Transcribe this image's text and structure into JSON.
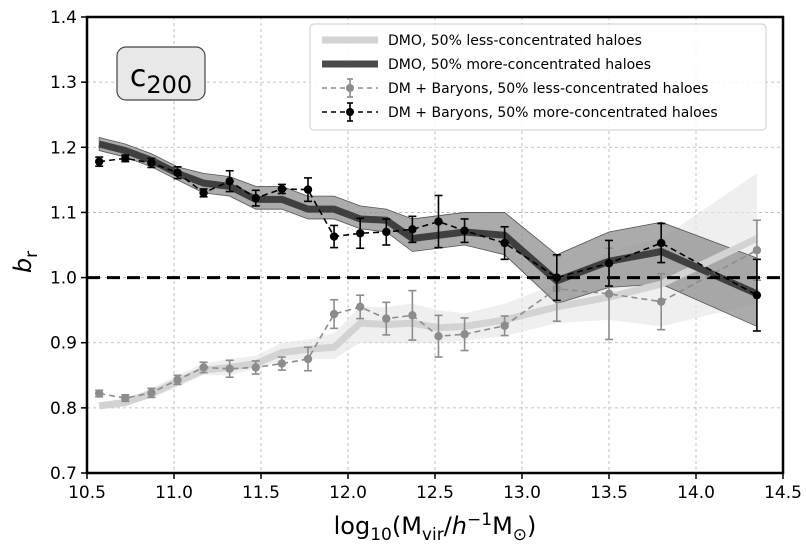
{
  "chart_data": {
    "type": "line",
    "title_box": {
      "base": "c",
      "sub": "200"
    },
    "xlabel": {
      "pre": "log",
      "pre_sub": "10",
      "open": "(M",
      "m_sub": "vir",
      "slash": "/",
      "h": "h",
      "h_sup": "−1",
      "msun": "M",
      "msun_sub": "⊙",
      "close": ")"
    },
    "ylabel": {
      "base": "b",
      "sub": "r"
    },
    "xlim": [
      10.5,
      14.5
    ],
    "ylim": [
      0.7,
      1.4
    ],
    "xticks": [
      10.5,
      11.0,
      11.5,
      12.0,
      12.5,
      13.0,
      13.5,
      14.0,
      14.5
    ],
    "yticks": [
      0.7,
      0.8,
      0.9,
      1.0,
      1.1,
      1.2,
      1.3,
      1.4
    ],
    "xtick_labels": [
      "10.5",
      "11.0",
      "11.5",
      "12.0",
      "12.5",
      "13.0",
      "13.5",
      "14.0",
      "14.5"
    ],
    "ytick_labels": [
      "0.7",
      "0.8",
      "0.9",
      "1.0",
      "1.1",
      "1.2",
      "1.3",
      "1.4"
    ],
    "grid": true,
    "reference_line": 1.0,
    "legend": {
      "position": "top-right",
      "entries": [
        {
          "label": "DMO, 50% less-concentrated haloes",
          "style": "thick",
          "color": "#d3d3d3"
        },
        {
          "label": "DMO, 50% more-concentrated haloes",
          "style": "thick",
          "color": "#4a4a4a"
        },
        {
          "label": "DM + Baryons, 50% less-concentrated haloes",
          "style": "errorbar",
          "color": "#8c8c8c"
        },
        {
          "label": "DM + Baryons, 50% more-concentrated haloes",
          "style": "errorbar",
          "color": "#000000"
        }
      ]
    },
    "series": [
      {
        "name": "DMO, 50% less-concentrated haloes",
        "kind": "band_line",
        "color": "#d3d3d3",
        "band_color": "#e6e6e6",
        "x": [
          10.57,
          10.72,
          10.87,
          11.02,
          11.17,
          11.32,
          11.47,
          11.62,
          11.77,
          11.92,
          12.07,
          12.22,
          12.37,
          12.52,
          12.67,
          12.9,
          13.2,
          13.5,
          13.8,
          14.35
        ],
        "y": [
          0.803,
          0.808,
          0.822,
          0.84,
          0.858,
          0.862,
          0.868,
          0.885,
          0.89,
          0.893,
          0.93,
          0.928,
          0.93,
          0.923,
          0.925,
          0.935,
          0.955,
          0.97,
          0.99,
          1.06
        ],
        "lo": [
          0.798,
          0.803,
          0.815,
          0.832,
          0.85,
          0.85,
          0.86,
          0.873,
          0.875,
          0.875,
          0.9,
          0.9,
          0.9,
          0.9,
          0.903,
          0.91,
          0.93,
          0.935,
          0.925,
          0.96
        ],
        "hi": [
          0.808,
          0.815,
          0.83,
          0.85,
          0.868,
          0.875,
          0.88,
          0.9,
          0.905,
          0.915,
          0.955,
          0.955,
          0.96,
          0.95,
          0.945,
          0.96,
          0.99,
          1.04,
          1.06,
          1.16
        ]
      },
      {
        "name": "DMO, 50% more-concentrated haloes",
        "kind": "band_line",
        "color": "#3f3f3f",
        "band_color": "#8f8f8f",
        "x": [
          10.57,
          10.72,
          10.87,
          11.02,
          11.17,
          11.32,
          11.47,
          11.62,
          11.77,
          11.92,
          12.07,
          12.22,
          12.37,
          12.52,
          12.67,
          12.9,
          13.2,
          13.5,
          13.8,
          14.35
        ],
        "y": [
          1.205,
          1.195,
          1.18,
          1.16,
          1.145,
          1.14,
          1.12,
          1.12,
          1.105,
          1.105,
          1.09,
          1.088,
          1.06,
          1.065,
          1.07,
          1.065,
          0.995,
          1.025,
          1.04,
          0.975
        ],
        "lo": [
          1.195,
          1.185,
          1.17,
          1.15,
          1.13,
          1.125,
          1.105,
          1.105,
          1.09,
          1.09,
          1.075,
          1.07,
          1.04,
          1.045,
          1.05,
          1.035,
          0.96,
          0.985,
          0.99,
          0.925
        ],
        "hi": [
          1.215,
          1.205,
          1.19,
          1.17,
          1.16,
          1.155,
          1.14,
          1.14,
          1.125,
          1.125,
          1.11,
          1.105,
          1.09,
          1.095,
          1.1,
          1.1,
          1.035,
          1.07,
          1.085,
          1.03
        ]
      },
      {
        "name": "DM + Baryons, 50% less-concentrated haloes",
        "kind": "errorbar",
        "color": "#8c8c8c",
        "x": [
          10.57,
          10.72,
          10.87,
          11.02,
          11.17,
          11.32,
          11.47,
          11.62,
          11.77,
          11.92,
          12.07,
          12.22,
          12.37,
          12.52,
          12.67,
          12.9,
          13.2,
          13.5,
          13.8,
          14.35
        ],
        "y": [
          0.822,
          0.815,
          0.823,
          0.843,
          0.862,
          0.86,
          0.862,
          0.868,
          0.875,
          0.944,
          0.955,
          0.937,
          0.942,
          0.91,
          0.913,
          0.926,
          0.983,
          0.975,
          0.963,
          1.042
        ],
        "err": [
          0.005,
          0.005,
          0.007,
          0.007,
          0.008,
          0.013,
          0.01,
          0.01,
          0.018,
          0.022,
          0.018,
          0.025,
          0.038,
          0.032,
          0.025,
          0.015,
          0.05,
          0.07,
          0.043,
          0.046
        ]
      },
      {
        "name": "DM + Baryons, 50% more-concentrated haloes",
        "kind": "errorbar",
        "color": "#000000",
        "x": [
          10.57,
          10.72,
          10.87,
          11.02,
          11.17,
          11.32,
          11.47,
          11.62,
          11.77,
          11.92,
          12.07,
          12.22,
          12.37,
          12.52,
          12.67,
          12.9,
          13.2,
          13.5,
          13.8,
          14.35
        ],
        "y": [
          1.178,
          1.183,
          1.176,
          1.161,
          1.13,
          1.148,
          1.122,
          1.136,
          1.135,
          1.063,
          1.068,
          1.07,
          1.074,
          1.086,
          1.072,
          1.053,
          1.0,
          1.022,
          1.053,
          0.973
        ],
        "err": [
          0.007,
          0.005,
          0.007,
          0.009,
          0.006,
          0.016,
          0.012,
          0.007,
          0.018,
          0.017,
          0.023,
          0.02,
          0.02,
          0.04,
          0.018,
          0.025,
          0.035,
          0.035,
          0.03,
          0.055
        ]
      }
    ]
  }
}
